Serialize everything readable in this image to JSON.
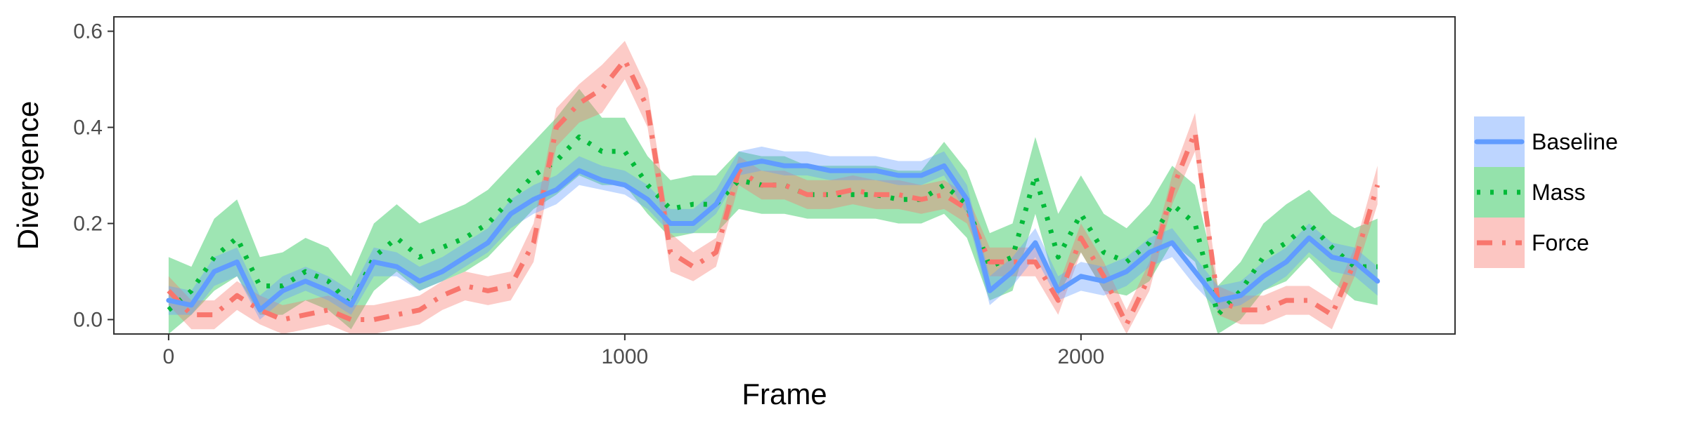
{
  "chart_data": {
    "type": "line",
    "xlabel": "Frame",
    "ylabel": "Divergence",
    "xlim": [
      -120,
      2820
    ],
    "ylim": [
      -0.03,
      0.63
    ],
    "xticks": [
      0,
      1000,
      2000
    ],
    "yticks": [
      0.0,
      0.2,
      0.4,
      0.6
    ],
    "ytick_labels": [
      "0.0",
      "0.2",
      "0.4",
      "0.6"
    ],
    "grid": false,
    "legend_position": "right",
    "series": [
      {
        "name": "Baseline",
        "color": "#619CFF",
        "style": "solid",
        "x": [
          0,
          50,
          100,
          150,
          200,
          250,
          300,
          350,
          400,
          450,
          500,
          550,
          600,
          650,
          700,
          750,
          800,
          850,
          900,
          950,
          1000,
          1050,
          1100,
          1150,
          1200,
          1250,
          1300,
          1350,
          1400,
          1450,
          1500,
          1550,
          1600,
          1650,
          1700,
          1750,
          1800,
          1850,
          1900,
          1950,
          2000,
          2050,
          2100,
          2150,
          2200,
          2250,
          2300,
          2350,
          2400,
          2450,
          2500,
          2550,
          2600,
          2650
        ],
        "y": [
          0.04,
          0.03,
          0.1,
          0.12,
          0.02,
          0.06,
          0.08,
          0.06,
          0.03,
          0.12,
          0.11,
          0.08,
          0.1,
          0.13,
          0.16,
          0.22,
          0.25,
          0.27,
          0.31,
          0.29,
          0.28,
          0.25,
          0.2,
          0.2,
          0.24,
          0.32,
          0.33,
          0.32,
          0.32,
          0.31,
          0.31,
          0.31,
          0.3,
          0.3,
          0.32,
          0.25,
          0.06,
          0.1,
          0.16,
          0.06,
          0.09,
          0.08,
          0.1,
          0.14,
          0.16,
          0.1,
          0.04,
          0.05,
          0.09,
          0.12,
          0.17,
          0.13,
          0.12,
          0.08
        ],
        "lower": [
          0.01,
          0.01,
          0.07,
          0.09,
          0.0,
          0.04,
          0.06,
          0.04,
          0.01,
          0.09,
          0.09,
          0.06,
          0.08,
          0.11,
          0.14,
          0.19,
          0.22,
          0.24,
          0.28,
          0.27,
          0.26,
          0.23,
          0.18,
          0.18,
          0.22,
          0.3,
          0.31,
          0.3,
          0.3,
          0.29,
          0.29,
          0.29,
          0.28,
          0.28,
          0.3,
          0.22,
          0.03,
          0.07,
          0.13,
          0.04,
          0.06,
          0.05,
          0.07,
          0.11,
          0.13,
          0.07,
          0.02,
          0.03,
          0.06,
          0.09,
          0.14,
          0.1,
          0.09,
          0.05
        ],
        "upper": [
          0.07,
          0.06,
          0.13,
          0.15,
          0.05,
          0.09,
          0.11,
          0.09,
          0.06,
          0.15,
          0.14,
          0.11,
          0.13,
          0.16,
          0.19,
          0.25,
          0.28,
          0.3,
          0.34,
          0.32,
          0.31,
          0.28,
          0.23,
          0.23,
          0.27,
          0.35,
          0.36,
          0.35,
          0.35,
          0.34,
          0.34,
          0.34,
          0.33,
          0.33,
          0.35,
          0.28,
          0.09,
          0.13,
          0.19,
          0.09,
          0.12,
          0.11,
          0.13,
          0.17,
          0.19,
          0.13,
          0.07,
          0.08,
          0.12,
          0.15,
          0.2,
          0.16,
          0.15,
          0.11
        ]
      },
      {
        "name": "Mass",
        "color": "#00BA38",
        "style": "dotted",
        "x": [
          0,
          50,
          100,
          150,
          200,
          250,
          300,
          350,
          400,
          450,
          500,
          550,
          600,
          650,
          700,
          750,
          800,
          850,
          900,
          950,
          1000,
          1050,
          1100,
          1150,
          1200,
          1250,
          1300,
          1350,
          1400,
          1450,
          1500,
          1550,
          1600,
          1650,
          1700,
          1750,
          1800,
          1850,
          1900,
          1950,
          2000,
          2050,
          2100,
          2150,
          2200,
          2250,
          2300,
          2350,
          2400,
          2450,
          2500,
          2550,
          2600,
          2650
        ],
        "y": [
          0.02,
          0.06,
          0.13,
          0.17,
          0.07,
          0.07,
          0.1,
          0.08,
          0.03,
          0.13,
          0.17,
          0.13,
          0.15,
          0.17,
          0.2,
          0.25,
          0.3,
          0.33,
          0.38,
          0.35,
          0.35,
          0.28,
          0.23,
          0.24,
          0.24,
          0.29,
          0.28,
          0.28,
          0.26,
          0.26,
          0.26,
          0.26,
          0.25,
          0.25,
          0.28,
          0.24,
          0.11,
          0.13,
          0.3,
          0.13,
          0.22,
          0.14,
          0.12,
          0.16,
          0.24,
          0.2,
          0.01,
          0.06,
          0.13,
          0.16,
          0.2,
          0.15,
          0.11,
          0.11
        ],
        "lower": [
          -0.03,
          0.01,
          0.06,
          0.09,
          0.01,
          0.01,
          0.04,
          0.02,
          -0.02,
          0.06,
          0.1,
          0.06,
          0.08,
          0.1,
          0.13,
          0.18,
          0.23,
          0.26,
          0.3,
          0.28,
          0.28,
          0.22,
          0.17,
          0.18,
          0.18,
          0.23,
          0.22,
          0.22,
          0.21,
          0.21,
          0.21,
          0.21,
          0.2,
          0.2,
          0.22,
          0.17,
          0.04,
          0.06,
          0.22,
          0.05,
          0.14,
          0.06,
          0.05,
          0.08,
          0.16,
          0.12,
          -0.03,
          0.0,
          0.06,
          0.08,
          0.13,
          0.08,
          0.04,
          0.03
        ],
        "upper": [
          0.13,
          0.11,
          0.21,
          0.25,
          0.13,
          0.14,
          0.17,
          0.15,
          0.09,
          0.2,
          0.24,
          0.2,
          0.22,
          0.24,
          0.27,
          0.32,
          0.37,
          0.42,
          0.48,
          0.42,
          0.42,
          0.34,
          0.29,
          0.3,
          0.3,
          0.35,
          0.34,
          0.34,
          0.32,
          0.32,
          0.32,
          0.32,
          0.31,
          0.31,
          0.37,
          0.31,
          0.18,
          0.2,
          0.38,
          0.22,
          0.3,
          0.22,
          0.19,
          0.24,
          0.32,
          0.28,
          0.07,
          0.12,
          0.2,
          0.24,
          0.27,
          0.22,
          0.19,
          0.21
        ]
      },
      {
        "name": "Force",
        "color": "#F8766D",
        "style": "dotdash",
        "x": [
          0,
          50,
          100,
          150,
          200,
          250,
          300,
          350,
          400,
          450,
          500,
          550,
          600,
          650,
          700,
          750,
          800,
          850,
          900,
          950,
          1000,
          1050,
          1100,
          1150,
          1200,
          1250,
          1300,
          1350,
          1400,
          1450,
          1500,
          1550,
          1600,
          1650,
          1700,
          1750,
          1800,
          1850,
          1900,
          1950,
          2000,
          2050,
          2100,
          2150,
          2200,
          2250,
          2300,
          2350,
          2400,
          2450,
          2500,
          2550,
          2600,
          2650
        ],
        "y": [
          0.06,
          0.01,
          0.01,
          0.05,
          0.02,
          0.0,
          0.01,
          0.02,
          0.0,
          0.0,
          0.01,
          0.02,
          0.05,
          0.07,
          0.06,
          0.07,
          0.16,
          0.4,
          0.45,
          0.48,
          0.54,
          0.44,
          0.14,
          0.11,
          0.14,
          0.31,
          0.28,
          0.28,
          0.26,
          0.26,
          0.27,
          0.26,
          0.26,
          0.25,
          0.26,
          0.23,
          0.12,
          0.12,
          0.12,
          0.04,
          0.17,
          0.09,
          -0.01,
          0.09,
          0.27,
          0.39,
          0.04,
          0.02,
          0.02,
          0.04,
          0.04,
          0.01,
          0.12,
          0.28
        ],
        "lower": [
          0.03,
          -0.02,
          -0.02,
          0.02,
          -0.01,
          -0.03,
          -0.02,
          -0.01,
          -0.03,
          -0.03,
          -0.02,
          -0.01,
          0.02,
          0.04,
          0.03,
          0.04,
          0.12,
          0.36,
          0.41,
          0.43,
          0.5,
          0.4,
          0.1,
          0.08,
          0.11,
          0.28,
          0.25,
          0.25,
          0.23,
          0.23,
          0.24,
          0.23,
          0.23,
          0.22,
          0.23,
          0.2,
          0.09,
          0.09,
          0.09,
          0.01,
          0.14,
          0.06,
          -0.03,
          0.06,
          0.24,
          0.35,
          0.01,
          -0.01,
          -0.01,
          0.01,
          0.01,
          -0.02,
          0.09,
          0.24
        ],
        "upper": [
          0.09,
          0.04,
          0.04,
          0.08,
          0.05,
          0.03,
          0.04,
          0.05,
          0.03,
          0.03,
          0.04,
          0.05,
          0.08,
          0.1,
          0.09,
          0.1,
          0.2,
          0.44,
          0.49,
          0.53,
          0.58,
          0.48,
          0.18,
          0.14,
          0.17,
          0.34,
          0.31,
          0.31,
          0.29,
          0.29,
          0.3,
          0.29,
          0.29,
          0.28,
          0.29,
          0.26,
          0.15,
          0.15,
          0.15,
          0.07,
          0.2,
          0.12,
          0.02,
          0.12,
          0.3,
          0.43,
          0.07,
          0.05,
          0.05,
          0.07,
          0.07,
          0.04,
          0.15,
          0.32
        ]
      }
    ]
  }
}
